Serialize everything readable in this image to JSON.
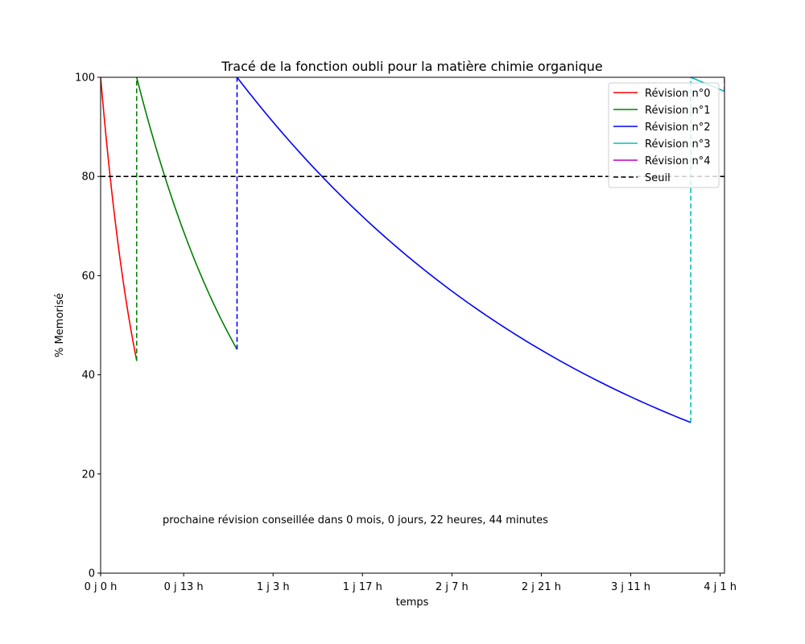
{
  "chart_data": {
    "type": "line",
    "title": "Tracé de la fonction oubli pour la matière chimie organique",
    "xlabel": "temps",
    "ylabel": "% Memorisé",
    "xlim": [
      0,
      4.07
    ],
    "ylim": [
      0,
      100
    ],
    "x_unit": "jours",
    "x_ticks": [
      {
        "value": 0,
        "label": "0 j 0 h"
      },
      {
        "value": 0.5417,
        "label": "0 j 13 h"
      },
      {
        "value": 1.125,
        "label": "1 j 3 h"
      },
      {
        "value": 1.7083,
        "label": "1 j 17 h"
      },
      {
        "value": 2.2917,
        "label": "2 j 7 h"
      },
      {
        "value": 2.875,
        "label": "2 j 21 h"
      },
      {
        "value": 3.4583,
        "label": "3 j 11 h"
      },
      {
        "value": 4.0417,
        "label": "4 j 1 h"
      }
    ],
    "y_ticks": [
      {
        "value": 0,
        "label": "0"
      },
      {
        "value": 20,
        "label": "20"
      },
      {
        "value": 40,
        "label": "40"
      },
      {
        "value": 60,
        "label": "60"
      },
      {
        "value": 80,
        "label": "80"
      },
      {
        "value": 100,
        "label": "100"
      }
    ],
    "series": [
      {
        "name": "Révision n°0",
        "color": "#ff0000",
        "start": 0,
        "end": 0.235,
        "decay_k": 3.6,
        "end_value": 42.8
      },
      {
        "name": "Révision n°1",
        "color": "#008000",
        "start": 0.235,
        "end": 0.89,
        "decay_k": 1.215,
        "end_value": 45.1
      },
      {
        "name": "Révision n°2",
        "color": "#0000ff",
        "start": 0.89,
        "end": 3.85,
        "decay_k": 0.4025,
        "end_value": 30.4
      },
      {
        "name": "Révision n°3",
        "color": "#00bfbf",
        "start": 3.85,
        "end": 4.07,
        "decay_k": 0.13,
        "end_value": 97.2
      },
      {
        "name": "Révision n°4",
        "color": "#bf00bf",
        "start": 4.07,
        "end": 4.07,
        "decay_k": 0,
        "end_value": 100
      }
    ],
    "threshold": {
      "name": "Seuil",
      "value": 80,
      "color": "#000000"
    },
    "annotation": "prochaine révision conseillée dans 0 mois, 0 jours, 22 heures, 44 minutes",
    "legend_position": "top-right",
    "grid": false
  }
}
